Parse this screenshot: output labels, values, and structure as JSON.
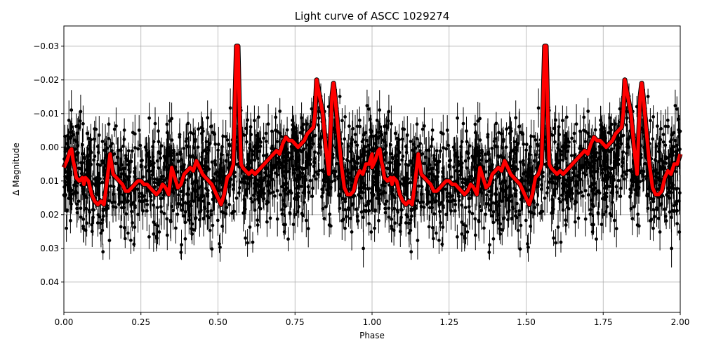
{
  "chart_data": {
    "type": "scatter",
    "title": "Light curve of ASCC 1029274",
    "xlabel": "Phase",
    "ylabel": "Δ Magnitude",
    "xlim": [
      0.0,
      2.0
    ],
    "ylim": [
      0.049,
      -0.036
    ],
    "y_inverted": true,
    "grid": true,
    "xticks": [
      0.0,
      0.25,
      0.5,
      0.75,
      1.0,
      1.25,
      1.5,
      1.75,
      2.0
    ],
    "xtick_labels": [
      "0.00",
      "0.25",
      "0.50",
      "0.75",
      "1.00",
      "1.25",
      "1.50",
      "1.75",
      "2.00"
    ],
    "yticks": [
      -0.03,
      -0.02,
      -0.01,
      0.0,
      0.01,
      0.02,
      0.03,
      0.04
    ],
    "ytick_labels": [
      "−0.03",
      "−0.02",
      "−0.01",
      "0.00",
      "0.01",
      "0.02",
      "0.03",
      "0.04"
    ],
    "series": [
      {
        "name": "observations",
        "style": "black points with vertical error bars",
        "color": "#000000",
        "note": "dense phase-folded photometry, scatter roughly ±0.02 mag around the binned curve, repeated for phase 1–2"
      },
      {
        "name": "binned model",
        "style": "thick red line with black edge",
        "color": "#ff0000",
        "x": [
          0.0,
          0.01,
          0.02,
          0.025,
          0.03,
          0.035,
          0.04,
          0.05,
          0.06,
          0.065,
          0.07,
          0.08,
          0.085,
          0.09,
          0.1,
          0.11,
          0.12,
          0.13,
          0.14,
          0.15,
          0.16,
          0.17,
          0.18,
          0.19,
          0.2,
          0.21,
          0.22,
          0.23,
          0.24,
          0.25,
          0.26,
          0.27,
          0.28,
          0.29,
          0.3,
          0.31,
          0.32,
          0.33,
          0.34,
          0.35,
          0.36,
          0.37,
          0.38,
          0.39,
          0.4,
          0.41,
          0.42,
          0.43,
          0.44,
          0.45,
          0.46,
          0.47,
          0.48,
          0.49,
          0.5,
          0.51,
          0.52,
          0.53,
          0.54,
          0.55,
          0.56,
          0.565,
          0.57,
          0.575,
          0.58,
          0.59,
          0.6,
          0.61,
          0.62,
          0.63,
          0.64,
          0.65,
          0.66,
          0.67,
          0.68,
          0.69,
          0.7,
          0.71,
          0.72,
          0.73,
          0.74,
          0.75,
          0.76,
          0.77,
          0.78,
          0.79,
          0.8,
          0.81,
          0.815,
          0.82,
          0.83,
          0.84,
          0.85,
          0.86,
          0.87,
          0.875,
          0.88,
          0.89,
          0.9,
          0.91,
          0.92,
          0.93,
          0.94,
          0.95,
          0.96,
          0.97,
          0.98,
          0.99,
          1.0
        ],
        "y": [
          0.006,
          0.004,
          0.001,
          0.0005,
          0.004,
          0.006,
          0.009,
          0.01,
          0.009,
          0.011,
          0.009,
          0.01,
          0.012,
          0.014,
          0.016,
          0.017,
          0.016,
          0.017,
          0.01,
          0.002,
          0.008,
          0.009,
          0.01,
          0.011,
          0.013,
          0.013,
          0.012,
          0.011,
          0.01,
          0.01,
          0.011,
          0.011,
          0.012,
          0.013,
          0.014,
          0.013,
          0.011,
          0.012,
          0.014,
          0.006,
          0.009,
          0.012,
          0.011,
          0.008,
          0.007,
          0.006,
          0.007,
          0.004,
          0.006,
          0.008,
          0.009,
          0.01,
          0.011,
          0.013,
          0.015,
          0.017,
          0.014,
          0.009,
          0.008,
          0.005,
          -0.03,
          -0.03,
          -0.01,
          0.005,
          0.006,
          0.007,
          0.008,
          0.007,
          0.008,
          0.007,
          0.006,
          0.005,
          0.004,
          0.003,
          0.002,
          0.001,
          0.002,
          -0.001,
          -0.003,
          -0.002,
          -0.002,
          -0.001,
          0.0,
          -0.001,
          -0.002,
          -0.004,
          -0.005,
          -0.006,
          -0.01,
          -0.02,
          -0.015,
          -0.01,
          0.0,
          0.008,
          -0.015,
          -0.019,
          -0.015,
          -0.005,
          0.005,
          0.012,
          0.014,
          0.014,
          0.013,
          0.009,
          0.007,
          0.008,
          0.005,
          0.005,
          0.002
        ]
      }
    ]
  },
  "scatter_params": {
    "seed": 1029274,
    "n_points": 1400,
    "spread": 0.02,
    "point_radius": 2.4,
    "errbar_min": 0.002,
    "errbar_max": 0.006
  }
}
